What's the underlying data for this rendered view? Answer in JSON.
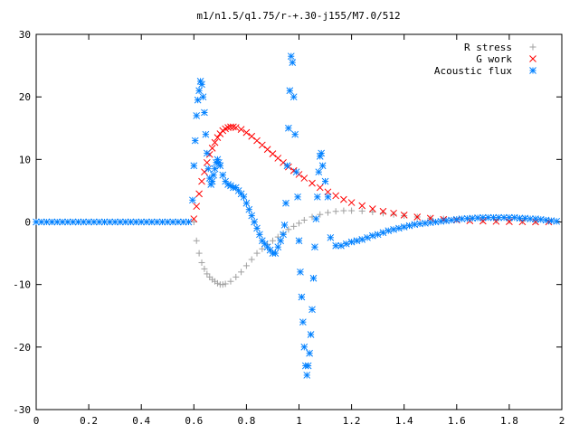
{
  "chart_data": {
    "type": "scatter",
    "title": "m1/n1.5/q1.75/r-+.30-j155/M7.0/512",
    "xlabel": "",
    "ylabel": "",
    "xlim": [
      0,
      2
    ],
    "ylim": [
      -30,
      30
    ],
    "grid": false,
    "legend_position": "top-right",
    "xticks": [
      "0",
      "0.2",
      "0.4",
      "0.6",
      "0.8",
      "1",
      "1.2",
      "1.4",
      "1.6",
      "1.8",
      "2"
    ],
    "yticks": [
      "30",
      "20",
      "10",
      "0",
      "-10",
      "-20",
      "-30"
    ],
    "series": [
      {
        "name": "R stress",
        "marker": "+",
        "color": "#a0a0a0",
        "x": [
          0.6,
          0.61,
          0.62,
          0.63,
          0.64,
          0.65,
          0.66,
          0.67,
          0.68,
          0.69,
          0.7,
          0.71,
          0.72,
          0.74,
          0.76,
          0.78,
          0.8,
          0.82,
          0.84,
          0.86,
          0.88,
          0.9,
          0.92,
          0.94,
          0.96,
          0.98,
          1.0,
          1.02,
          1.05,
          1.08,
          1.11,
          1.14,
          1.17,
          1.2,
          1.24,
          1.28,
          1.32,
          1.36,
          1.4,
          1.45,
          1.5,
          1.55,
          1.6,
          1.65,
          1.7,
          1.75,
          1.8,
          1.85,
          1.9,
          1.95
        ],
        "y": [
          0,
          -3,
          -5,
          -6.5,
          -7.5,
          -8.3,
          -8.8,
          -9.2,
          -9.5,
          -9.8,
          -10,
          -10,
          -9.9,
          -9.5,
          -8.8,
          -8,
          -7,
          -6,
          -5,
          -4.3,
          -3.6,
          -3,
          -2.4,
          -1.8,
          -1.2,
          -0.7,
          -0.2,
          0.3,
          0.8,
          1.2,
          1.5,
          1.7,
          1.8,
          1.8,
          1.75,
          1.6,
          1.4,
          1.2,
          1.0,
          0.8,
          0.6,
          0.5,
          0.4,
          0.35,
          0.3,
          0.25,
          0.2,
          0.15,
          0.12,
          0.1
        ]
      },
      {
        "name": "G work",
        "marker": "x",
        "color": "#ff0000",
        "x": [
          0.6,
          0.61,
          0.62,
          0.63,
          0.64,
          0.65,
          0.66,
          0.67,
          0.68,
          0.69,
          0.7,
          0.71,
          0.72,
          0.73,
          0.74,
          0.75,
          0.76,
          0.78,
          0.8,
          0.82,
          0.84,
          0.86,
          0.88,
          0.9,
          0.92,
          0.94,
          0.96,
          0.98,
          1.0,
          1.02,
          1.05,
          1.08,
          1.11,
          1.14,
          1.17,
          1.2,
          1.24,
          1.28,
          1.32,
          1.36,
          1.4,
          1.45,
          1.5,
          1.55,
          1.6,
          1.65,
          1.7,
          1.75,
          1.8,
          1.85,
          1.9,
          1.95
        ],
        "y": [
          0.5,
          2.5,
          4.5,
          6.5,
          8,
          9.5,
          10.8,
          11.8,
          12.7,
          13.5,
          14.1,
          14.6,
          14.9,
          15.1,
          15.2,
          15.2,
          15.1,
          14.8,
          14.3,
          13.7,
          13,
          12.3,
          11.6,
          10.9,
          10.2,
          9.5,
          8.8,
          8.2,
          7.6,
          7,
          6.2,
          5.5,
          4.8,
          4.2,
          3.6,
          3.1,
          2.6,
          2.1,
          1.7,
          1.4,
          1.1,
          0.8,
          0.6,
          0.4,
          0.3,
          0.2,
          0.15,
          0.1,
          0.05,
          0.03,
          0.02,
          0.01
        ]
      },
      {
        "name": "Acoustic flux",
        "marker": "*",
        "color": "#0080ff",
        "x": [
          0.0,
          0.02,
          0.04,
          0.06,
          0.08,
          0.1,
          0.12,
          0.14,
          0.16,
          0.18,
          0.2,
          0.22,
          0.24,
          0.26,
          0.28,
          0.3,
          0.32,
          0.34,
          0.36,
          0.38,
          0.4,
          0.42,
          0.44,
          0.46,
          0.48,
          0.5,
          0.52,
          0.54,
          0.56,
          0.58,
          0.595,
          0.6,
          0.605,
          0.61,
          0.615,
          0.62,
          0.625,
          0.63,
          0.635,
          0.64,
          0.645,
          0.65,
          0.655,
          0.66,
          0.665,
          0.67,
          0.675,
          0.68,
          0.685,
          0.69,
          0.695,
          0.7,
          0.71,
          0.72,
          0.73,
          0.74,
          0.75,
          0.76,
          0.77,
          0.78,
          0.79,
          0.8,
          0.81,
          0.82,
          0.83,
          0.84,
          0.85,
          0.86,
          0.87,
          0.88,
          0.89,
          0.9,
          0.91,
          0.92,
          0.93,
          0.94,
          0.945,
          0.95,
          0.955,
          0.96,
          0.965,
          0.97,
          0.975,
          0.98,
          0.985,
          0.99,
          0.995,
          1.0,
          1.005,
          1.01,
          1.015,
          1.02,
          1.025,
          1.03,
          1.035,
          1.04,
          1.045,
          1.05,
          1.055,
          1.06,
          1.065,
          1.07,
          1.075,
          1.08,
          1.085,
          1.09,
          1.1,
          1.11,
          1.12,
          1.14,
          1.16,
          1.18,
          1.2,
          1.22,
          1.24,
          1.26,
          1.28,
          1.3,
          1.32,
          1.34,
          1.36,
          1.38,
          1.4,
          1.42,
          1.44,
          1.46,
          1.48,
          1.5,
          1.52,
          1.54,
          1.56,
          1.58,
          1.6,
          1.62,
          1.64,
          1.66,
          1.68,
          1.7,
          1.72,
          1.74,
          1.76,
          1.78,
          1.8,
          1.82,
          1.84,
          1.86,
          1.88,
          1.9,
          1.92,
          1.94,
          1.96,
          1.98
        ],
        "y": [
          0,
          0,
          0,
          0,
          0,
          0,
          0,
          0,
          0,
          0,
          0,
          0,
          0,
          0,
          0,
          0,
          0,
          0,
          0,
          0,
          0,
          0,
          0,
          0,
          0,
          0,
          0,
          0,
          0,
          0,
          3.5,
          9,
          13,
          17,
          19.5,
          21,
          22.5,
          22,
          20,
          17.5,
          14,
          11,
          8.5,
          7,
          6,
          6.5,
          7.5,
          8.5,
          9.5,
          10,
          9.5,
          9,
          7.5,
          6.5,
          6,
          5.8,
          5.5,
          5.5,
          5,
          4.5,
          4,
          3,
          2,
          1,
          0,
          -1,
          -2,
          -3,
          -3.5,
          -4,
          -4.5,
          -5,
          -5,
          -4,
          -3,
          -2,
          -0.5,
          3,
          9,
          15,
          21,
          26.5,
          25.5,
          20,
          14,
          8,
          4,
          -3,
          -8,
          -12,
          -16,
          -20,
          -23,
          -24.5,
          -23,
          -21,
          -18,
          -14,
          -9,
          -4,
          0.5,
          4,
          8,
          10.5,
          11,
          9,
          6.5,
          4,
          -2.5,
          -3.8,
          -3.8,
          -3.5,
          -3.2,
          -3.0,
          -2.8,
          -2.5,
          -2.2,
          -2.0,
          -1.7,
          -1.4,
          -1.2,
          -1.0,
          -0.8,
          -0.6,
          -0.4,
          -0.3,
          -0.2,
          -0.1,
          0,
          0.1,
          0.2,
          0.3,
          0.4,
          0.5,
          0.55,
          0.6,
          0.65,
          0.7,
          0.7,
          0.7,
          0.7,
          0.7,
          0.7,
          0.7,
          0.6,
          0.6,
          0.5,
          0.5,
          0.4,
          0.3,
          0.2,
          0.1
        ]
      }
    ]
  }
}
